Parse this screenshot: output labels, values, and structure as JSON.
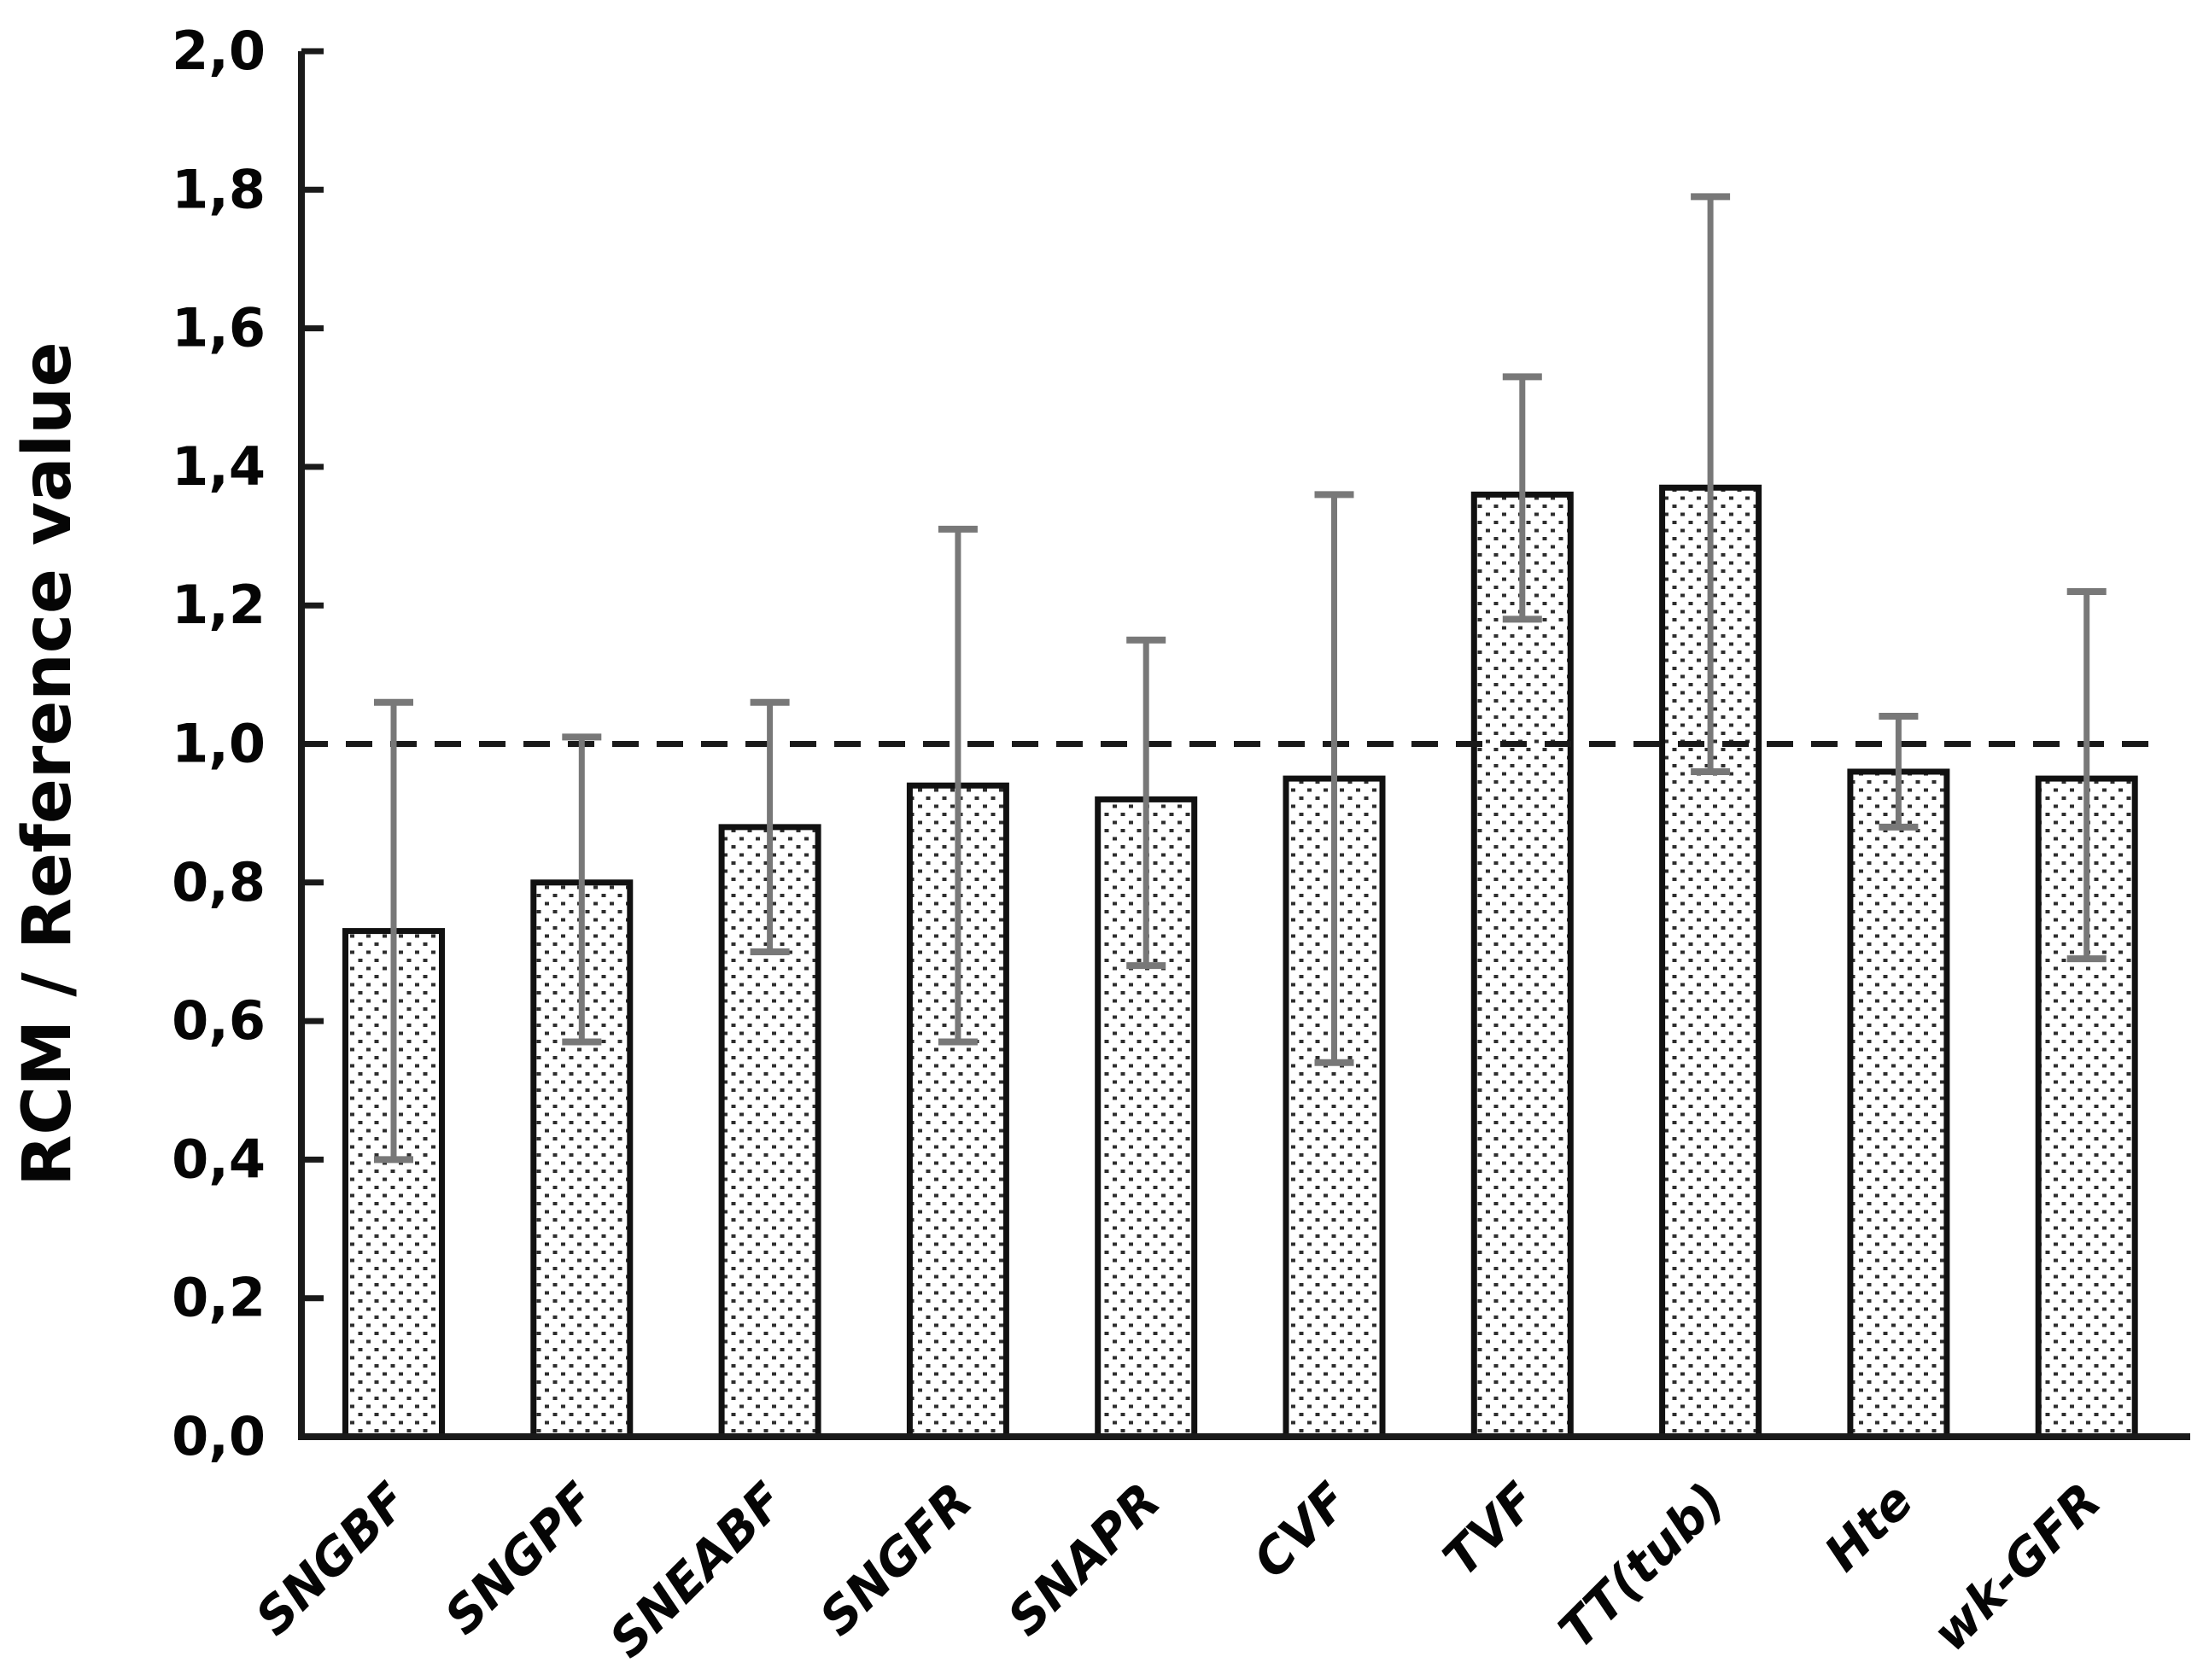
{
  "chart_data": {
    "type": "bar",
    "title": "",
    "ylabel": "RCM / Reference value",
    "xlabel": "",
    "ylim": [
      0.0,
      2.0
    ],
    "y_tick_step": 0.2,
    "decimal_separator": ",",
    "y_tick_labels": [
      "0,0",
      "0,2",
      "0,4",
      "0,6",
      "0,8",
      "1,0",
      "1,2",
      "1,4",
      "1,6",
      "1,8",
      "2,0"
    ],
    "grid": "off",
    "legend": "none",
    "reference_line": {
      "value": 1.0,
      "style": "dashed",
      "color": "#1a1a1a"
    },
    "categories": [
      "SNGBF",
      "SNGPF",
      "SNEABF",
      "SNGFR",
      "SNAPR",
      "CVF",
      "TVF",
      "TT(tub)",
      "Hte",
      "wk-GFR"
    ],
    "values": [
      0.73,
      0.8,
      0.88,
      0.94,
      0.92,
      0.95,
      1.36,
      1.37,
      0.96,
      0.95
    ],
    "error_low": [
      0.4,
      0.57,
      0.7,
      0.57,
      0.68,
      0.54,
      1.18,
      0.96,
      0.88,
      0.69
    ],
    "error_high": [
      1.06,
      1.01,
      1.06,
      1.31,
      1.15,
      1.36,
      1.53,
      1.79,
      1.04,
      1.22
    ],
    "bar_style": {
      "fill": "#ffffff",
      "pattern": "dots",
      "pattern_color": "#2e2e2e",
      "border_color": "#111111"
    },
    "error_bar_color": "#787878",
    "axis_color": "#1a1a1a"
  }
}
